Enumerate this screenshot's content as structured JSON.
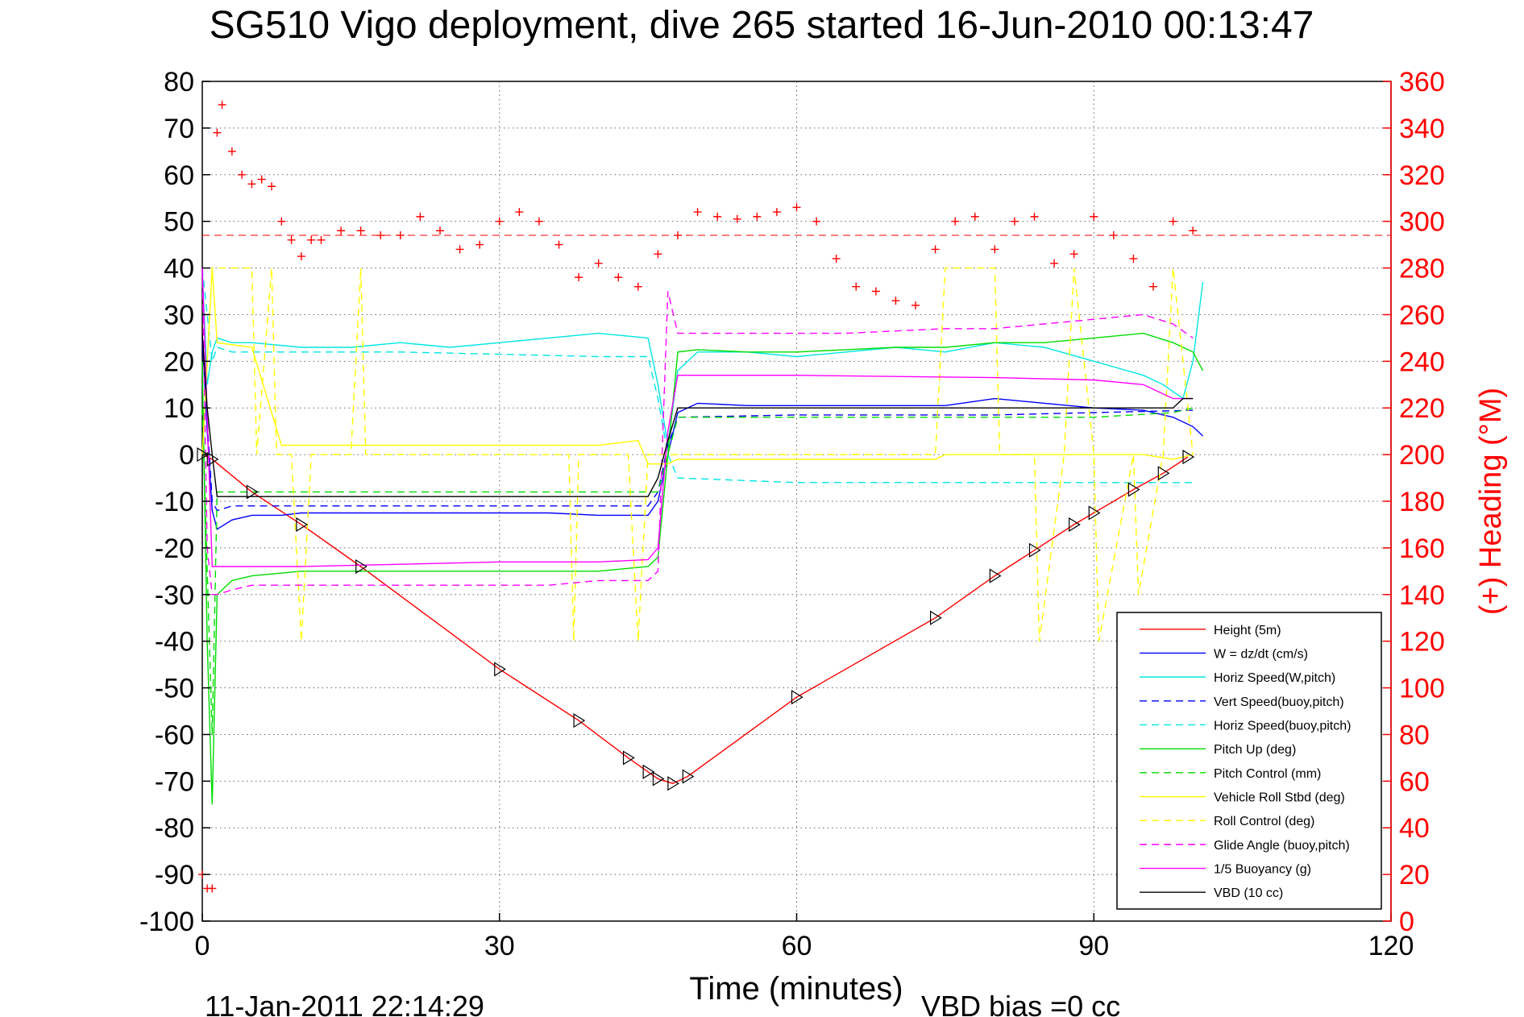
{
  "chart_data": {
    "type": "line",
    "title": "SG510 Vigo deployment, dive 265 started 16-Jun-2010 00:13:47",
    "xlabel": "Time (minutes)",
    "ylabel": "",
    "ylabel_right": "(+) Heading (°M)",
    "xlim": [
      0,
      120
    ],
    "ylim": [
      -100,
      80
    ],
    "ylim_right": [
      0,
      360
    ],
    "x_ticks": [
      "0",
      "30",
      "60",
      "90",
      "120"
    ],
    "y_ticks": [
      "80",
      "70",
      "60",
      "50",
      "40",
      "30",
      "20",
      "10",
      "0",
      "-10",
      "-20",
      "-30",
      "-40",
      "-50",
      "-60",
      "-70",
      "-80",
      "-90",
      "-100"
    ],
    "y_ticks_right": [
      "360",
      "340",
      "320",
      "300",
      "280",
      "260",
      "240",
      "220",
      "200",
      "180",
      "160",
      "140",
      "120",
      "100",
      "80",
      "60",
      "40",
      "20",
      "0"
    ],
    "grid": true,
    "legend_position": "bottom-right",
    "footer_left": "11-Jan-2011 22:14:29",
    "footer_right": "VBD bias =0 cc",
    "series": [
      {
        "name": "Height (5m)",
        "color": "#ff0000",
        "style": "solid",
        "x": [
          0,
          1,
          5,
          10,
          16,
          30,
          38,
          43,
          45,
          46,
          47.5,
          49,
          60,
          74,
          80,
          84,
          88,
          90,
          94,
          97,
          99.5
        ],
        "y": [
          0,
          -1,
          -8,
          -15,
          -24,
          -46,
          -57,
          -65,
          -68,
          -69.5,
          -70.5,
          -69,
          -52,
          -35,
          -26,
          -20.5,
          -15,
          -12.5,
          -7.5,
          -4,
          -0.5
        ]
      },
      {
        "name": "W = dz/dt (cm/s)",
        "color": "#0000ff",
        "style": "solid",
        "x": [
          0,
          0.5,
          1,
          1.5,
          3,
          5,
          8,
          10,
          15,
          20,
          25,
          30,
          35,
          40,
          45,
          46,
          47,
          48,
          50,
          55,
          60,
          65,
          70,
          75,
          80,
          85,
          90,
          95,
          98,
          100,
          101
        ],
        "y": [
          25,
          5,
          -12,
          -16,
          -14,
          -13,
          -13,
          -12.5,
          -12.5,
          -12.5,
          -12.5,
          -12.5,
          -12.5,
          -13,
          -13,
          -10,
          0,
          9,
          11,
          10.5,
          10.5,
          10.5,
          10.5,
          10.5,
          12,
          11,
          10,
          9.5,
          8,
          6,
          4
        ]
      },
      {
        "name": "Horiz Speed(W,pitch)",
        "color": "#00e5e5",
        "style": "solid",
        "x": [
          0,
          0.5,
          1,
          1.5,
          3,
          5,
          10,
          15,
          20,
          25,
          30,
          35,
          40,
          45,
          46,
          47,
          48,
          50,
          55,
          60,
          65,
          70,
          75,
          80,
          85,
          90,
          95,
          97,
          99,
          100,
          101
        ],
        "y": [
          40,
          15,
          22,
          25,
          24,
          24,
          23,
          23,
          24,
          23,
          24,
          25,
          26,
          25,
          15,
          2,
          18,
          22,
          22,
          21,
          22,
          23,
          22,
          24,
          23,
          20,
          17,
          15,
          12,
          20,
          37
        ]
      },
      {
        "name": "Vert Speed(buoy,pitch)",
        "color": "#0000ff",
        "style": "dashed",
        "x": [
          0,
          1,
          1.5,
          3,
          10,
          20,
          30,
          40,
          45,
          46,
          47,
          48,
          60,
          80,
          90,
          100
        ],
        "y": [
          25,
          -10,
          -12,
          -11,
          -11,
          -11,
          -11,
          -11,
          -11,
          -8,
          2,
          8,
          8.5,
          8.5,
          9,
          9.5
        ]
      },
      {
        "name": "Horiz Speed(buoy,pitch)",
        "color": "#00e5e5",
        "style": "dashed",
        "x": [
          0,
          1,
          1.5,
          3,
          10,
          20,
          30,
          40,
          45,
          46,
          47,
          48,
          60,
          80,
          90,
          100
        ],
        "y": [
          40,
          20,
          23,
          22,
          22,
          22,
          21.5,
          21,
          21,
          12,
          0,
          -5,
          -6,
          -6,
          -6,
          -6
        ]
      },
      {
        "name": "Pitch Up (deg)",
        "color": "#00dd00",
        "style": "solid",
        "x": [
          0,
          0.5,
          1,
          1.5,
          3,
          5,
          10,
          15,
          20,
          25,
          30,
          35,
          40,
          45,
          46,
          47,
          48,
          50,
          55,
          60,
          65,
          70,
          75,
          80,
          85,
          90,
          95,
          98,
          100,
          101
        ],
        "y": [
          20,
          -40,
          -75,
          -30,
          -27,
          -26,
          -25,
          -25,
          -25,
          -25,
          -25,
          -25,
          -25,
          -24,
          -22,
          0,
          22,
          22.5,
          22,
          22,
          22.5,
          23,
          23,
          24,
          24,
          25,
          26,
          24,
          22,
          18
        ]
      },
      {
        "name": "Pitch Control (mm)",
        "color": "#00dd00",
        "style": "dashed",
        "x": [
          0,
          1,
          1.5,
          3,
          10,
          20,
          30,
          40,
          45,
          46,
          47,
          48,
          60,
          80,
          90,
          98,
          100
        ],
        "y": [
          10,
          -60,
          -8,
          -8,
          -8,
          -8,
          -8,
          -8,
          -8,
          -8,
          0,
          8,
          8,
          8,
          8,
          9,
          10
        ]
      },
      {
        "name": "Vehicle Roll Stbd (deg)",
        "color": "#ffff00",
        "style": "solid",
        "x": [
          0,
          1,
          1.5,
          5,
          8,
          10,
          15,
          20,
          25,
          30,
          35,
          40,
          44,
          45,
          46,
          47,
          48,
          50,
          55,
          60,
          65,
          70,
          74,
          75,
          80,
          85,
          90,
          95,
          98,
          100
        ],
        "y": [
          0,
          40,
          24,
          23,
          2,
          2,
          2,
          2,
          2,
          2,
          2,
          2,
          3,
          -2,
          -2,
          -2,
          -1,
          -1,
          -1,
          -1,
          -1,
          -1,
          -1,
          0,
          0,
          0,
          0,
          0,
          -1,
          0
        ]
      },
      {
        "name": "Roll Control (deg)",
        "color": "#ffff00",
        "style": "dashed",
        "x": [
          0,
          1,
          2,
          5,
          5.5,
          7,
          7.5,
          9,
          10,
          11,
          15,
          16,
          16.5,
          20,
          30,
          37,
          37.5,
          38,
          43,
          44,
          45,
          47,
          60,
          74,
          75,
          80,
          80.5,
          84,
          84.5,
          87,
          88,
          90,
          90.5,
          94,
          94.5,
          97,
          98,
          100
        ],
        "y": [
          0,
          40,
          40,
          40,
          0,
          40,
          0,
          0,
          -40,
          0,
          0,
          40,
          0,
          0,
          0,
          0,
          -40,
          0,
          0,
          -40,
          0,
          0,
          0,
          0,
          40,
          40,
          0,
          0,
          -40,
          0,
          40,
          0,
          -40,
          0,
          -30,
          0,
          40,
          0
        ]
      },
      {
        "name": "Glide Angle (buoy,pitch)",
        "color": "#ff00ff",
        "style": "dashed",
        "x": [
          0,
          0.5,
          1,
          1.5,
          3,
          5,
          10,
          15,
          20,
          25,
          30,
          35,
          40,
          45,
          46,
          47,
          48,
          50,
          55,
          60,
          65,
          70,
          75,
          80,
          85,
          90,
          95,
          98,
          100
        ],
        "y": [
          40,
          -20,
          -30,
          -30,
          -29,
          -28,
          -28,
          -28,
          -28,
          -28,
          -28,
          -28,
          -27,
          -27,
          -25,
          35,
          26,
          26,
          26,
          26,
          26,
          26.5,
          27,
          27,
          28,
          29,
          30,
          28,
          25
        ]
      },
      {
        "name": "1/5 Buoyancy (g)",
        "color": "#ff00ff",
        "style": "solid",
        "x": [
          0,
          1,
          1.5,
          3,
          10,
          20,
          30,
          40,
          45,
          46,
          47,
          48,
          60,
          80,
          90,
          95,
          98,
          100
        ],
        "y": [
          40,
          -24,
          -24,
          -24,
          -24,
          -23.5,
          -23,
          -23,
          -22.5,
          -20,
          5,
          17,
          17,
          16.5,
          16,
          15,
          12,
          12
        ]
      },
      {
        "name": "VBD (10 cc)",
        "color": "#000000",
        "style": "solid",
        "x": [
          0,
          0.5,
          1,
          1.5,
          2,
          45,
          46,
          47,
          48,
          60,
          80,
          90,
          95,
          98,
          99,
          100
        ],
        "y": [
          26,
          10,
          0,
          -9,
          -9,
          -9,
          -5,
          3,
          10,
          10,
          10,
          10,
          10,
          10,
          12,
          12
        ]
      }
    ],
    "heading": {
      "name": "Heading",
      "axis": "right",
      "color": "#ff0000",
      "marker": "+",
      "mean_line": 294,
      "x": [
        0,
        0.5,
        1,
        1.5,
        2,
        3,
        4,
        5,
        6,
        7,
        8,
        9,
        10,
        11,
        12,
        14,
        16,
        18,
        20,
        22,
        24,
        26,
        28,
        30,
        32,
        34,
        36,
        38,
        40,
        42,
        44,
        46,
        48,
        50,
        52,
        54,
        56,
        58,
        60,
        62,
        64,
        66,
        68,
        70,
        72,
        74,
        76,
        78,
        80,
        82,
        84,
        86,
        88,
        90,
        92,
        94,
        96,
        98,
        100
      ],
      "y": [
        20,
        14,
        14,
        338,
        350,
        330,
        320,
        316,
        318,
        315,
        300,
        292,
        285,
        292,
        292,
        296,
        296,
        294,
        294,
        302,
        296,
        288,
        290,
        300,
        304,
        300,
        290,
        276,
        282,
        276,
        272,
        286,
        294,
        304,
        302,
        301,
        302,
        304,
        306,
        300,
        284,
        272,
        270,
        266,
        264,
        288,
        300,
        302,
        288,
        300,
        302,
        282,
        286,
        302,
        294,
        284,
        272,
        300,
        296
      ]
    }
  }
}
